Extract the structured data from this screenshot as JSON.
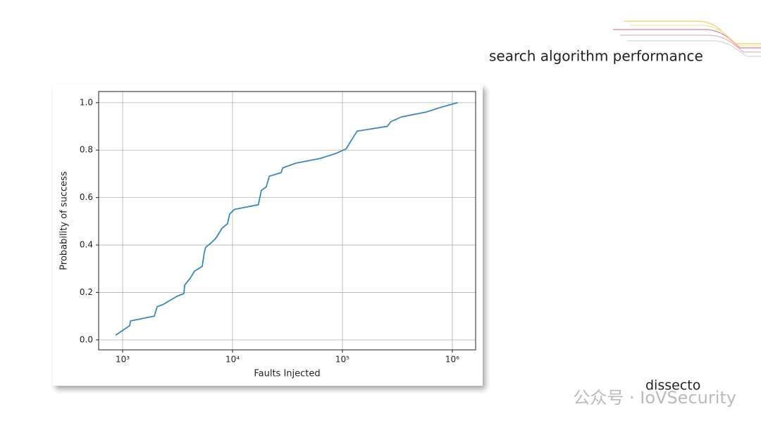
{
  "slide_title": "search algorithm performance",
  "footer": "dissecto",
  "watermark": "公众号 · IoVSecurity",
  "chart_data": {
    "type": "line",
    "xlabel": "Faults Injected",
    "ylabel": "Probability of success",
    "x": [
      863,
      1160,
      1180,
      1940,
      2060,
      2350,
      2770,
      3160,
      3610,
      3660,
      4120,
      4510,
      5300,
      5540,
      5700,
      6420,
      7100,
      8000,
      9000,
      9400,
      10400,
      17200,
      18300,
      20300,
      21600,
      27700,
      28600,
      37800,
      63000,
      86000,
      108000,
      120000,
      136000,
      256000,
      276000,
      345000,
      575000,
      780000,
      1120000
    ],
    "values": [
      0.02,
      0.06,
      0.08,
      0.1,
      0.14,
      0.15,
      0.17,
      0.185,
      0.195,
      0.23,
      0.26,
      0.29,
      0.31,
      0.37,
      0.39,
      0.41,
      0.43,
      0.47,
      0.49,
      0.53,
      0.55,
      0.57,
      0.63,
      0.645,
      0.69,
      0.705,
      0.725,
      0.745,
      0.765,
      0.785,
      0.805,
      0.84,
      0.88,
      0.9,
      0.92,
      0.94,
      0.96,
      0.98,
      1.0
    ],
    "color": "#3b88b8",
    "xscale": "log",
    "xlim": [
      605,
      1630000
    ],
    "xticks": [
      {
        "value": 1000,
        "label": "10³"
      },
      {
        "value": 10000,
        "label": "10⁴"
      },
      {
        "value": 100000,
        "label": "10⁵"
      },
      {
        "value": 1000000,
        "label": "10⁶"
      }
    ],
    "ylim": [
      -0.042,
      1.047
    ],
    "yticks": [
      {
        "value": 0,
        "label": "0.0"
      },
      0.2,
      0.4,
      0.6,
      0.8,
      {
        "value": 1,
        "label": "1.0"
      }
    ],
    "grid": true
  }
}
